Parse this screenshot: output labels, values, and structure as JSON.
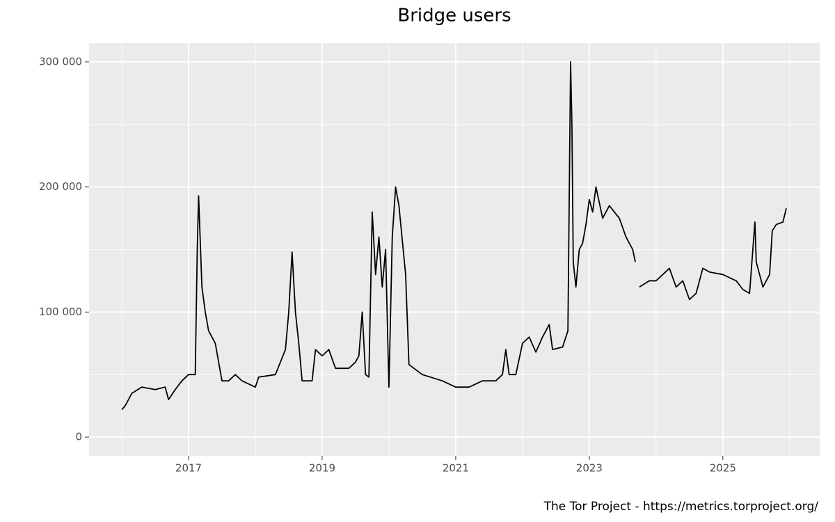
{
  "chart_data": {
    "type": "line",
    "title": "Bridge users",
    "caption": "The Tor Project - https://metrics.torproject.org/",
    "color": "#000000",
    "grid": true,
    "xlim": [
      2015.51,
      2026.45
    ],
    "xticks": [
      2017,
      2019,
      2021,
      2023,
      2025
    ],
    "x_minor_ticks": [
      2016,
      2018,
      2020,
      2022,
      2024,
      2026
    ],
    "ylim": [
      -15000,
      315000
    ],
    "yticks": [
      {
        "value": 0,
        "label": "0"
      },
      {
        "value": 100000,
        "label": "100 000"
      },
      {
        "value": 200000,
        "label": "200 000"
      },
      {
        "value": 300000,
        "label": "300 000"
      }
    ],
    "y_minor_ticks": [
      50000,
      150000,
      250000
    ],
    "x": [
      2016.0,
      2016.05,
      2016.15,
      2016.3,
      2016.5,
      2016.65,
      2016.7,
      2016.8,
      2016.9,
      2017.0,
      2017.1,
      2017.13,
      2017.15,
      2017.2,
      2017.25,
      2017.3,
      2017.4,
      2017.5,
      2017.6,
      2017.7,
      2017.8,
      2018.0,
      2018.05,
      2018.3,
      2018.45,
      2018.5,
      2018.55,
      2018.6,
      2018.65,
      2018.7,
      2018.85,
      2018.9,
      2019.0,
      2019.1,
      2019.2,
      2019.4,
      2019.5,
      2019.55,
      2019.6,
      2019.65,
      2019.7,
      2019.75,
      2019.8,
      2019.85,
      2019.9,
      2019.95,
      2020.0,
      2020.05,
      2020.1,
      2020.15,
      2020.25,
      2020.3,
      2020.5,
      2020.8,
      2021.0,
      2021.2,
      2021.4,
      2021.6,
      2021.7,
      2021.75,
      2021.8,
      2021.9,
      2022.0,
      2022.1,
      2022.2,
      2022.3,
      2022.4,
      2022.45,
      2022.6,
      2022.68,
      2022.72,
      2022.74,
      2022.76,
      2022.8,
      2022.85,
      2022.9,
      2022.95,
      2023.0,
      2023.05,
      2023.1,
      2023.2,
      2023.3,
      2023.45,
      2023.55,
      2023.65,
      2023.69,
      2023.72,
      2023.75,
      2023.9,
      2024.0,
      2024.1,
      2024.2,
      2024.3,
      2024.4,
      2024.5,
      2024.6,
      2024.7,
      2024.8,
      2025.0,
      2025.2,
      2025.3,
      2025.4,
      2025.48,
      2025.5,
      2025.6,
      2025.7,
      2025.74,
      2025.8,
      2025.9,
      2025.95
    ],
    "values": [
      22000,
      25000,
      35000,
      40000,
      38000,
      40000,
      30000,
      38000,
      45000,
      50000,
      50000,
      150000,
      193000,
      120000,
      100000,
      85000,
      75000,
      45000,
      45000,
      50000,
      45000,
      40000,
      48000,
      50000,
      70000,
      100000,
      148000,
      100000,
      75000,
      45000,
      45000,
      70000,
      65000,
      70000,
      55000,
      55000,
      60000,
      65000,
      100000,
      50000,
      48000,
      180000,
      130000,
      160000,
      120000,
      150000,
      40000,
      160000,
      200000,
      185000,
      130000,
      58000,
      50000,
      45000,
      40000,
      40000,
      45000,
      45000,
      50000,
      70000,
      50000,
      50000,
      75000,
      80000,
      68000,
      80000,
      90000,
      70000,
      72000,
      85000,
      300000,
      250000,
      140000,
      120000,
      150000,
      155000,
      170000,
      190000,
      180000,
      200000,
      175000,
      185000,
      175000,
      160000,
      150000,
      140000,
      null,
      120000,
      125000,
      125000,
      130000,
      135000,
      120000,
      125000,
      110000,
      115000,
      135000,
      132000,
      130000,
      125000,
      118000,
      115000,
      172000,
      140000,
      120000,
      130000,
      165000,
      170000,
      172000,
      183000
    ]
  }
}
